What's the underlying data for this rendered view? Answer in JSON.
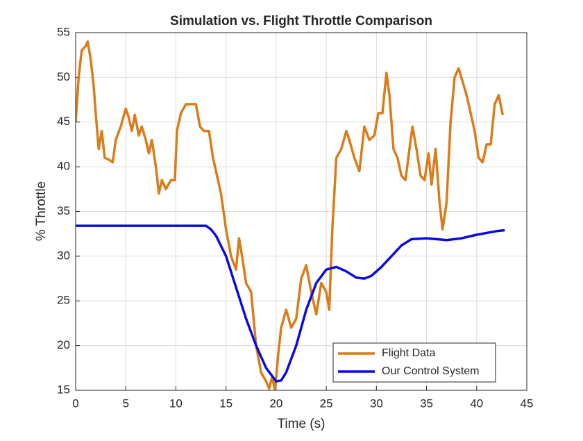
{
  "chart_data": {
    "type": "line",
    "title": "Simulation vs. Flight Throttle Comparison",
    "x_label": "Time (s)",
    "y_label": "% Throttle",
    "xlim": [
      0,
      45
    ],
    "xticks": [
      0,
      5,
      10,
      15,
      20,
      25,
      30,
      35,
      40,
      45
    ],
    "ylim": [
      15,
      55
    ],
    "yticks": [
      15,
      20,
      25,
      30,
      35,
      40,
      45,
      50,
      55
    ],
    "grid": true,
    "legend": "lower-right",
    "series": [
      {
        "name": "Flight Data",
        "color": "#d97c1a",
        "x": [
          0,
          0.3,
          0.6,
          1.0,
          1.2,
          1.5,
          1.8,
          2.0,
          2.3,
          2.6,
          2.9,
          3.3,
          3.7,
          4.0,
          4.5,
          5.0,
          5.3,
          5.6,
          5.9,
          6.3,
          6.6,
          7.0,
          7.3,
          7.6,
          8.0,
          8.3,
          8.6,
          9.0,
          9.5,
          9.9,
          10.1,
          10.5,
          11.0,
          11.5,
          12.0,
          12.4,
          12.8,
          13.3,
          13.7,
          14.1,
          14.5,
          15.0,
          15.5,
          16.0,
          16.3,
          16.6,
          17.0,
          17.5,
          18.0,
          18.5,
          19.0,
          19.3,
          19.6,
          19.9,
          20.2,
          20.5,
          21.0,
          21.5,
          22.0,
          22.5,
          23.0,
          23.5,
          24.0,
          24.5,
          25.0,
          25.3,
          25.6,
          26.0,
          26.5,
          27.0,
          27.3,
          27.8,
          28.3,
          28.8,
          29.3,
          29.8,
          30.2,
          30.6,
          31.0,
          31.3,
          31.7,
          32.1,
          32.5,
          32.9,
          33.3,
          33.6,
          34.0,
          34.4,
          34.8,
          35.2,
          35.5,
          35.9,
          36.3,
          36.6,
          37.0,
          37.4,
          37.8,
          38.2,
          38.6,
          39.0,
          39.4,
          39.8,
          40.2,
          40.6,
          41.0,
          41.4,
          41.8,
          42.2,
          42.6
        ],
        "values": [
          45,
          50,
          53,
          53.5,
          54,
          52,
          49,
          46,
          42,
          44,
          41,
          40.8,
          40.5,
          43,
          44.5,
          46.5,
          45.5,
          44,
          45.8,
          43.5,
          44.5,
          43,
          41.5,
          43,
          40,
          37,
          38.5,
          37.5,
          38.5,
          38.5,
          44,
          46,
          47,
          47,
          47,
          44.5,
          44,
          44,
          41,
          39,
          37,
          33,
          30,
          28.5,
          32,
          30,
          27,
          26,
          20,
          17,
          16,
          15.2,
          16.5,
          15,
          19,
          22,
          24,
          22,
          23,
          27.5,
          29,
          26,
          23.5,
          27,
          26,
          24,
          33,
          41,
          42,
          44,
          43,
          41,
          39.5,
          44.5,
          43,
          43.5,
          46,
          46,
          50.5,
          48,
          42,
          41,
          39,
          38.5,
          42,
          44.5,
          42,
          39,
          38.5,
          41.5,
          38,
          42,
          36,
          33,
          36,
          45,
          50,
          51,
          49.5,
          48,
          46,
          44,
          41,
          40.5,
          42.5,
          42.5,
          47,
          48,
          45.8
        ]
      },
      {
        "name": "Our Control System",
        "color": "#0a0ae0",
        "x": [
          0,
          13,
          13.5,
          14,
          15,
          16,
          17,
          18,
          19,
          20,
          20.5,
          21,
          22,
          23,
          24,
          25,
          26,
          27,
          28,
          28.8,
          29.5,
          30.5,
          31.5,
          32.5,
          33.5,
          35,
          37,
          38.5,
          40,
          42,
          42.8
        ],
        "values": [
          33.4,
          33.4,
          33,
          32.3,
          30,
          26.5,
          23,
          20,
          17.5,
          16,
          16.1,
          17,
          20,
          24,
          27,
          28.5,
          28.8,
          28.3,
          27.6,
          27.5,
          27.8,
          28.8,
          30,
          31.2,
          31.9,
          32,
          31.8,
          32,
          32.4,
          32.8,
          32.9
        ]
      }
    ]
  }
}
